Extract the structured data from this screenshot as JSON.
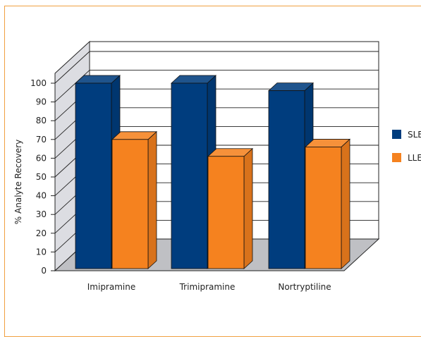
{
  "chart_data": {
    "type": "bar",
    "ylabel": "% Analyte Recovery",
    "ylim": [
      0,
      100
    ],
    "yticks": [
      0,
      10,
      20,
      30,
      40,
      50,
      60,
      70,
      80,
      90,
      100
    ],
    "categories": [
      "Imipramine",
      "Trimipramine",
      "Nortryptiline"
    ],
    "series": [
      {
        "name": "SLE",
        "color": "#003d7e",
        "values": [
          100,
          100,
          96
        ]
      },
      {
        "name": "LLE",
        "color": "#f5821f",
        "values": [
          70,
          61,
          66
        ]
      }
    ],
    "grid": true,
    "legend": "right"
  }
}
